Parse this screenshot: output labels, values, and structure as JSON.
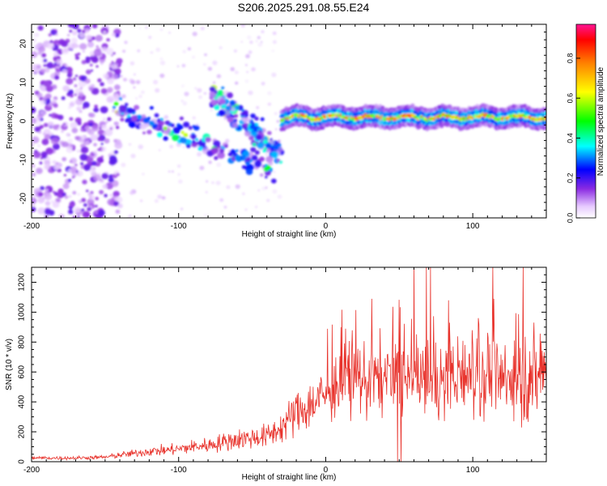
{
  "chart_data": [
    {
      "type": "heatmap",
      "title": "S206.2025.291.08.55.E24",
      "xlabel": "Height of straight line (km)",
      "ylabel": "Frequency (Hz)",
      "xlim": [
        -200,
        150
      ],
      "ylim": [
        -25,
        25
      ],
      "xticks": [
        -200,
        -100,
        0,
        100
      ],
      "yticks": [
        -20,
        -10,
        0,
        10,
        20
      ],
      "colorbar": {
        "label": "Normalized spectral amplitude",
        "range": [
          0,
          0.97
        ],
        "ticks": [
          "0.0",
          "0.2",
          "0.4",
          "0.6",
          "0.8"
        ]
      },
      "features": [
        {
          "name": "scattered low-amplitude noise",
          "x_range": [
            -200,
            -140
          ],
          "freq_range": [
            -25,
            25
          ],
          "amplitude": 0.1
        },
        {
          "name": "descending branch",
          "x_start": -145,
          "x_end": -35,
          "freq_start": 4,
          "freq_end": -13,
          "amplitude": 0.3
        },
        {
          "name": "second descending branch",
          "x_start": -78,
          "x_end": -30,
          "freq_start": 7,
          "freq_end": -8,
          "amplitude": 0.3
        },
        {
          "name": "steady band",
          "x_start": -30,
          "x_end": 150,
          "freq_center": 1,
          "amplitude": 0.7
        }
      ]
    },
    {
      "type": "line",
      "xlabel": "Height of straight line (km)",
      "ylabel": "SNR (10 * v/v)",
      "xlim": [
        -200,
        150
      ],
      "ylim": [
        0,
        1300
      ],
      "xticks": [
        -200,
        -100,
        0,
        100
      ],
      "yticks": [
        0,
        200,
        400,
        600,
        800,
        1000,
        1200
      ],
      "color": "#e8322b",
      "series": [
        {
          "name": "SNR",
          "x": [
            -200,
            -190,
            -180,
            -170,
            -160,
            -150,
            -140,
            -130,
            -120,
            -110,
            -100,
            -90,
            -80,
            -70,
            -60,
            -50,
            -40,
            -30,
            -20,
            -10,
            0,
            10,
            20,
            30,
            40,
            50,
            60,
            70,
            80,
            90,
            100,
            110,
            120,
            130,
            140,
            150
          ],
          "values": [
            25,
            25,
            24,
            25,
            28,
            30,
            45,
            55,
            70,
            75,
            85,
            100,
            110,
            130,
            150,
            160,
            170,
            230,
            330,
            380,
            450,
            520,
            540,
            560,
            550,
            560,
            520,
            540,
            570,
            560,
            580,
            600,
            520,
            540,
            570,
            600
          ]
        }
      ]
    }
  ]
}
